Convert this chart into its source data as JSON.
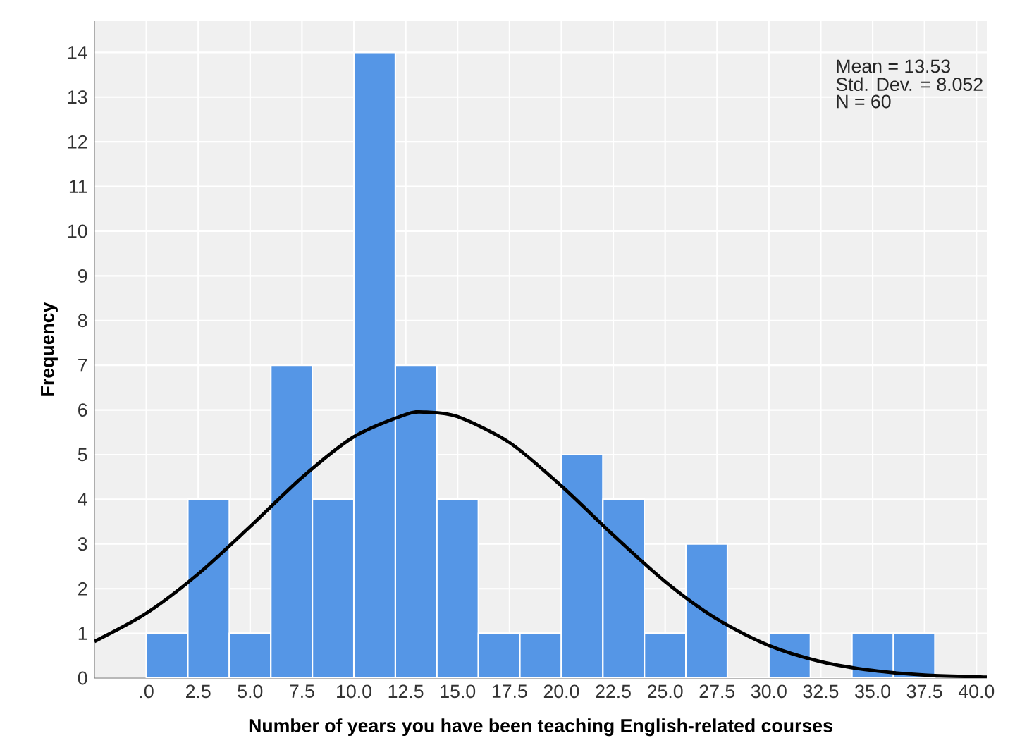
{
  "chart_data": {
    "type": "histogram",
    "xlabel": "Number of years you have been teaching English-related courses",
    "ylabel": "Frequency",
    "annotations": [
      "Mean = 13.53",
      "Std. Dev. = 8.052",
      "N = 60"
    ],
    "series": [
      {
        "color": "#5596e6",
        "bins": [
          0,
          2,
          4,
          6,
          8,
          10,
          12,
          14,
          16,
          18,
          20,
          22,
          24,
          26,
          28,
          30,
          32,
          34,
          36,
          38
        ],
        "values": [
          1,
          4,
          1,
          7,
          4,
          14,
          7,
          4,
          1,
          1,
          5,
          4,
          1,
          3,
          0,
          1,
          0,
          1,
          1
        ]
      },
      {
        "type": "line",
        "color": "#000000",
        "x": [
          -2.5,
          0,
          2.5,
          5,
          7.5,
          10,
          12.5,
          13.5,
          15,
          17.5,
          20,
          22.5,
          25,
          27.5,
          30,
          32.5,
          35,
          37.5,
          40,
          40.5
        ],
        "values": [
          0.82,
          1.45,
          2.33,
          3.39,
          4.49,
          5.4,
          5.9,
          5.95,
          5.85,
          5.27,
          4.3,
          3.2,
          2.16,
          1.32,
          0.73,
          0.37,
          0.17,
          0.07,
          0.03,
          0.02
        ]
      }
    ],
    "xlim": [
      -2.5,
      40.5
    ],
    "xticks": [
      {
        "value": 0,
        "label": ".0"
      },
      2.5,
      {
        "value": 5,
        "label": "5.0"
      },
      7.5,
      {
        "value": 10,
        "label": "10.0"
      },
      12.5,
      {
        "value": 15,
        "label": "15.0"
      },
      17.5,
      {
        "value": 20,
        "label": "20.0"
      },
      22.5,
      {
        "value": 25,
        "label": "25.0"
      },
      27.5,
      {
        "value": 30,
        "label": "30.0"
      },
      32.5,
      {
        "value": 35,
        "label": "35.0"
      },
      37.5,
      {
        "value": 40,
        "label": "40.0"
      }
    ],
    "ylim": [
      0,
      14.7
    ],
    "yticks": [
      0,
      1,
      2,
      3,
      4,
      5,
      6,
      7,
      8,
      9,
      10,
      11,
      12,
      13,
      14
    ],
    "grid": true
  }
}
